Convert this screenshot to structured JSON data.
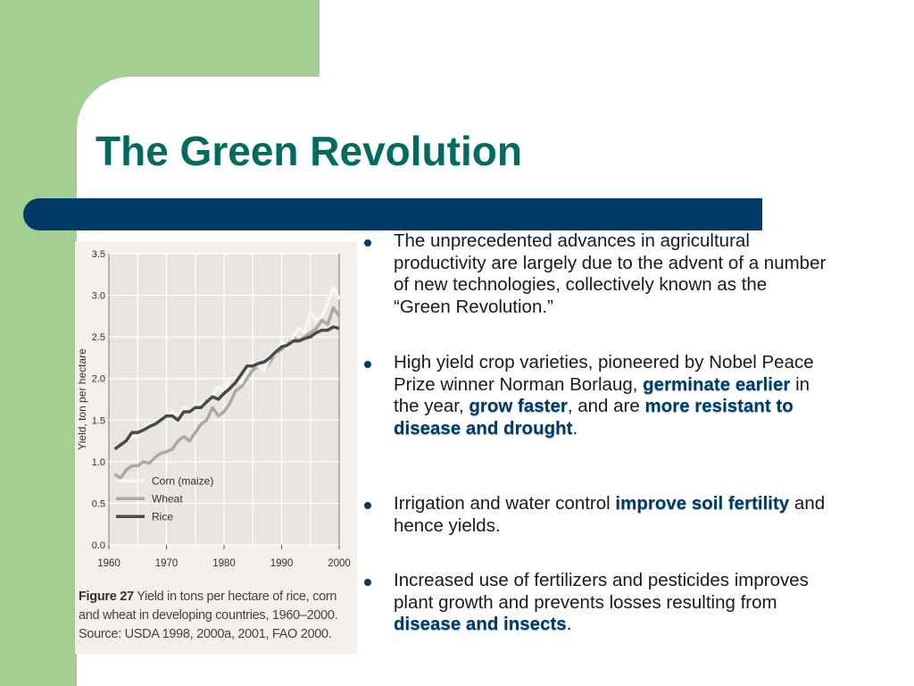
{
  "slide": {
    "title": "The Green Revolution",
    "colors": {
      "background": "#a3cf93",
      "title": "#006b5e",
      "bar": "#003a66",
      "highlight": "#003a66"
    }
  },
  "bullets": [
    {
      "parts": [
        {
          "text": "The unprecedented advances in agricultural productivity are largely due to the advent of a number of new technologies, collectively known as the “Green Revolution.”",
          "bold": false
        }
      ]
    },
    {
      "parts": [
        {
          "text": "High yield crop varieties, pioneered by Nobel Peace Prize winner Norman Borlaug, ",
          "bold": false
        },
        {
          "text": "germinate earlier",
          "bold": true
        },
        {
          "text": " in the year, ",
          "bold": false
        },
        {
          "text": "grow faster",
          "bold": true
        },
        {
          "text": ", and are ",
          "bold": false
        },
        {
          "text": "more resistant to disease and drought",
          "bold": true
        },
        {
          "text": ".",
          "bold": false
        }
      ]
    },
    {
      "parts": [
        {
          "text": "Irrigation and water control ",
          "bold": false
        },
        {
          "text": "improve soil fertility",
          "bold": true
        },
        {
          "text": " and hence yields.",
          "bold": false
        }
      ]
    },
    {
      "parts": [
        {
          "text": "Increased use of fertilizers and pesticides improves plant growth and prevents losses resulting from ",
          "bold": false
        },
        {
          "text": "disease and insects",
          "bold": true
        },
        {
          "text": ".",
          "bold": false
        }
      ]
    }
  ],
  "figure": {
    "caption_label": "Figure 27",
    "caption_text": " Yield in tons per hectare of rice, corn and wheat in developing countries, 1960–2000. Source: USDA 1998, 2000a, 2001, FAO 2000."
  },
  "chart_data": {
    "type": "line",
    "ylabel": "Yield, ton per hectare",
    "xlabel": "",
    "xlim": [
      1960,
      2000
    ],
    "ylim": [
      0,
      3.5
    ],
    "x_ticks": [
      "1960",
      "1970",
      "1980",
      "1990",
      "2000"
    ],
    "y_ticks": [
      "0.0",
      "0.5",
      "1.0",
      "1.5",
      "2.0",
      "2.5",
      "3.0",
      "3.5"
    ],
    "grid": true,
    "legend_position": "bottom-left",
    "x": [
      1961,
      1962,
      1963,
      1964,
      1965,
      1966,
      1967,
      1968,
      1969,
      1970,
      1971,
      1972,
      1973,
      1974,
      1975,
      1976,
      1977,
      1978,
      1979,
      1980,
      1981,
      1982,
      1983,
      1984,
      1985,
      1986,
      1987,
      1988,
      1989,
      1990,
      1991,
      1992,
      1993,
      1994,
      1995,
      1996,
      1997,
      1998,
      1999,
      2000
    ],
    "series": [
      {
        "name": "Corn (maize)",
        "color": "#f6f6f6",
        "values": [
          1.15,
          1.2,
          1.25,
          1.3,
          1.3,
          1.38,
          1.45,
          1.45,
          1.5,
          1.55,
          1.6,
          1.55,
          1.65,
          1.6,
          1.68,
          1.7,
          1.72,
          1.8,
          1.9,
          1.85,
          2.0,
          2.0,
          1.95,
          2.1,
          2.2,
          2.15,
          2.1,
          2.25,
          2.3,
          2.45,
          2.35,
          2.5,
          2.6,
          2.55,
          2.8,
          2.7,
          2.75,
          2.9,
          3.1,
          2.95
        ]
      },
      {
        "name": "Wheat",
        "color": "#a9a9a9",
        "values": [
          0.85,
          0.8,
          0.9,
          0.95,
          0.95,
          1.0,
          0.98,
          1.05,
          1.1,
          1.12,
          1.15,
          1.25,
          1.3,
          1.25,
          1.35,
          1.45,
          1.5,
          1.65,
          1.55,
          1.6,
          1.7,
          1.85,
          1.9,
          2.0,
          2.1,
          2.15,
          2.1,
          2.2,
          2.3,
          2.35,
          2.4,
          2.5,
          2.45,
          2.5,
          2.55,
          2.6,
          2.7,
          2.65,
          2.85,
          2.75
        ]
      },
      {
        "name": "Rice",
        "color": "#4a4a4a",
        "values": [
          1.15,
          1.2,
          1.25,
          1.35,
          1.35,
          1.38,
          1.42,
          1.45,
          1.5,
          1.55,
          1.55,
          1.5,
          1.6,
          1.6,
          1.65,
          1.65,
          1.72,
          1.78,
          1.75,
          1.82,
          1.88,
          1.95,
          2.05,
          2.15,
          2.15,
          2.18,
          2.2,
          2.25,
          2.32,
          2.38,
          2.4,
          2.45,
          2.45,
          2.48,
          2.5,
          2.55,
          2.58,
          2.58,
          2.62,
          2.6
        ]
      }
    ]
  }
}
